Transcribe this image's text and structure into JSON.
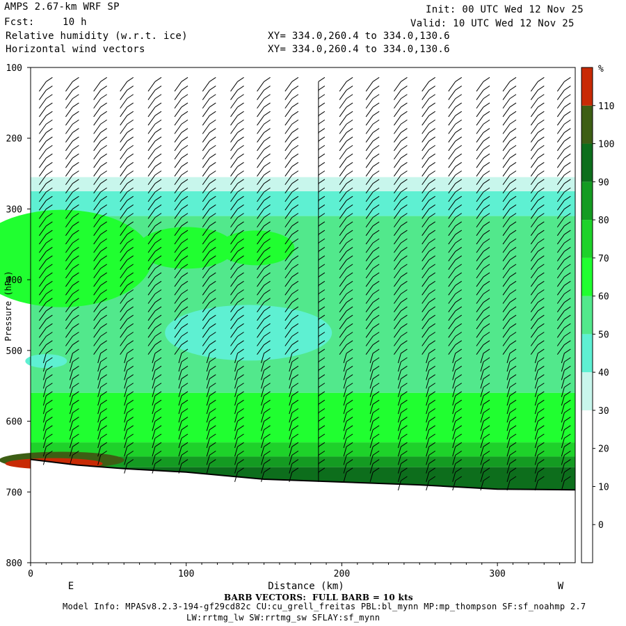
{
  "header": {
    "title": "AMPS 2.67-km WRF SP",
    "forecast_label": "Fcst:",
    "forecast_value": "10 h",
    "field1": "Relative humidity (w.r.t. ice)",
    "field2": "Horizontal wind vectors",
    "xy1": "XY= 334.0,260.4 to 334.0,130.6",
    "xy2": "XY= 334.0,260.4 to 334.0,130.6",
    "init": "Init: 00 UTC Wed 12 Nov 25",
    "valid": "Valid: 10 UTC Wed 12 Nov 25"
  },
  "footer": {
    "barb_note": "BARB VECTORS:  FULL BARB = 10 kts",
    "model_info": "Model Info: MPASv8.2.3-194-gf29cd82c CU:cu_grell_freitas PBL:bl_mynn MP:mp_thompson SF:sf_noahmp 2.7",
    "model_info2": "LW:rrtmg_lw SW:rrtmg_sw SFLAY:sf_mynn"
  },
  "chart_data": {
    "type": "heatmap",
    "xlabel": "Distance (km)",
    "ylabel": "Pressure (hPa)",
    "xlim": [
      0,
      350
    ],
    "ylim": [
      100,
      800
    ],
    "y_inverted": true,
    "x_ticks": [
      0,
      100,
      200,
      300
    ],
    "y_ticks": [
      100,
      200,
      300,
      400,
      500,
      600,
      700,
      800
    ],
    "x_end_labels": {
      "left": "E",
      "right": "W"
    },
    "colorbar": {
      "unit": "%",
      "levels": [
        0,
        10,
        20,
        30,
        40,
        50,
        60,
        70,
        80,
        90,
        100,
        110
      ],
      "colors": [
        "#ffffff",
        "#ffffff",
        "#ffffff",
        "#ffffff",
        "#c8f6ec",
        "#5ef0d2",
        "#52e88c",
        "#20ff30",
        "#1ed22a",
        "#149b22",
        "#0d6e1c",
        "#3d5e14",
        "#c82a05"
      ]
    },
    "rh_layers_pressure": [
      {
        "bottom_hPa": 255,
        "min_rh": 30
      },
      {
        "bottom_hPa": 275,
        "min_rh": 40
      },
      {
        "bottom_hPa": 310,
        "min_rh": 50
      },
      {
        "bottom_hPa": 560,
        "min_rh": 60
      },
      {
        "bottom_hPa": 630,
        "min_rh": 70
      },
      {
        "bottom_hPa": 650,
        "min_rh": 80
      },
      {
        "bottom_hPa": 665,
        "min_rh": 90
      }
    ],
    "terrain_pressure_hPa": [
      {
        "x": 0,
        "p": 654
      },
      {
        "x": 30,
        "p": 662
      },
      {
        "x": 60,
        "p": 667
      },
      {
        "x": 100,
        "p": 672
      },
      {
        "x": 150,
        "p": 682
      },
      {
        "x": 200,
        "p": 686
      },
      {
        "x": 250,
        "p": 690
      },
      {
        "x": 300,
        "p": 696
      },
      {
        "x": 350,
        "p": 697
      }
    ],
    "barb_columns_km": [
      10,
      27,
      45,
      62,
      80,
      97,
      115,
      133,
      150,
      168,
      185,
      203,
      220,
      238,
      256,
      273,
      291,
      308,
      326,
      343
    ]
  }
}
